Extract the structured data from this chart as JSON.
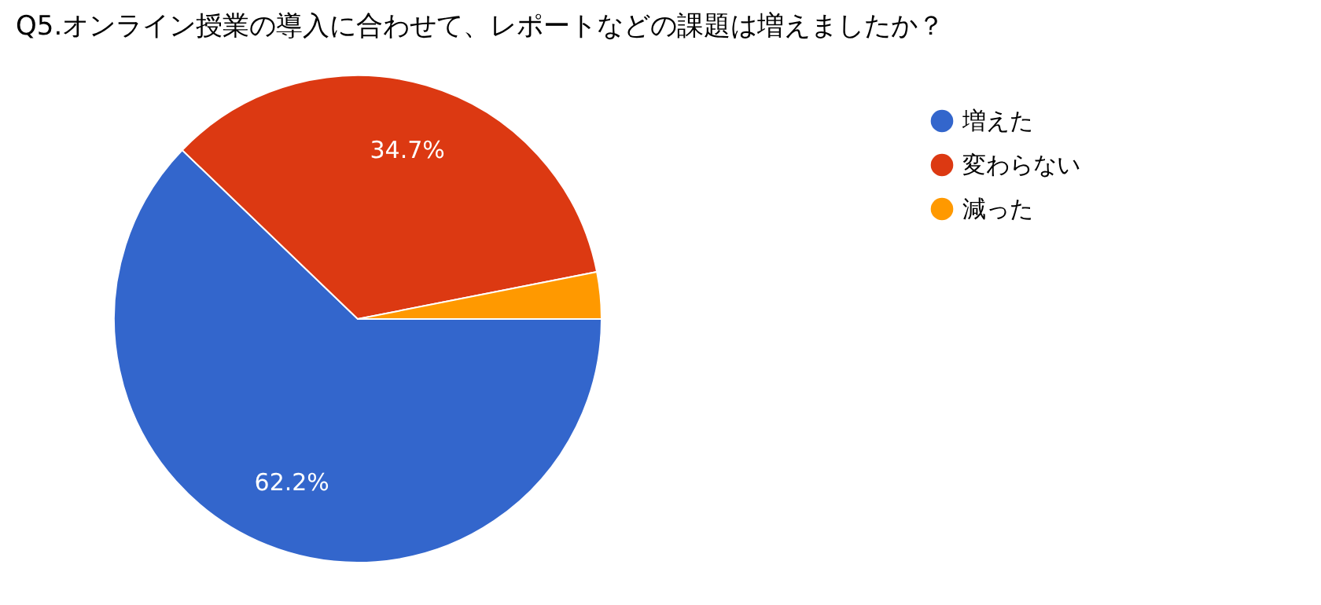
{
  "chart_data": {
    "type": "pie",
    "title": "Q5.オンライン授業の導入に合わせて、レポートなどの課題は増えましたか？",
    "categories": [
      "増えた",
      "変わらない",
      "減った"
    ],
    "values": [
      62.2,
      34.7,
      3.1
    ],
    "colors": [
      "#3366cc",
      "#dc3912",
      "#ff9900"
    ],
    "value_labels": [
      "62.2%",
      "34.7%",
      null
    ],
    "legend": "top right"
  }
}
